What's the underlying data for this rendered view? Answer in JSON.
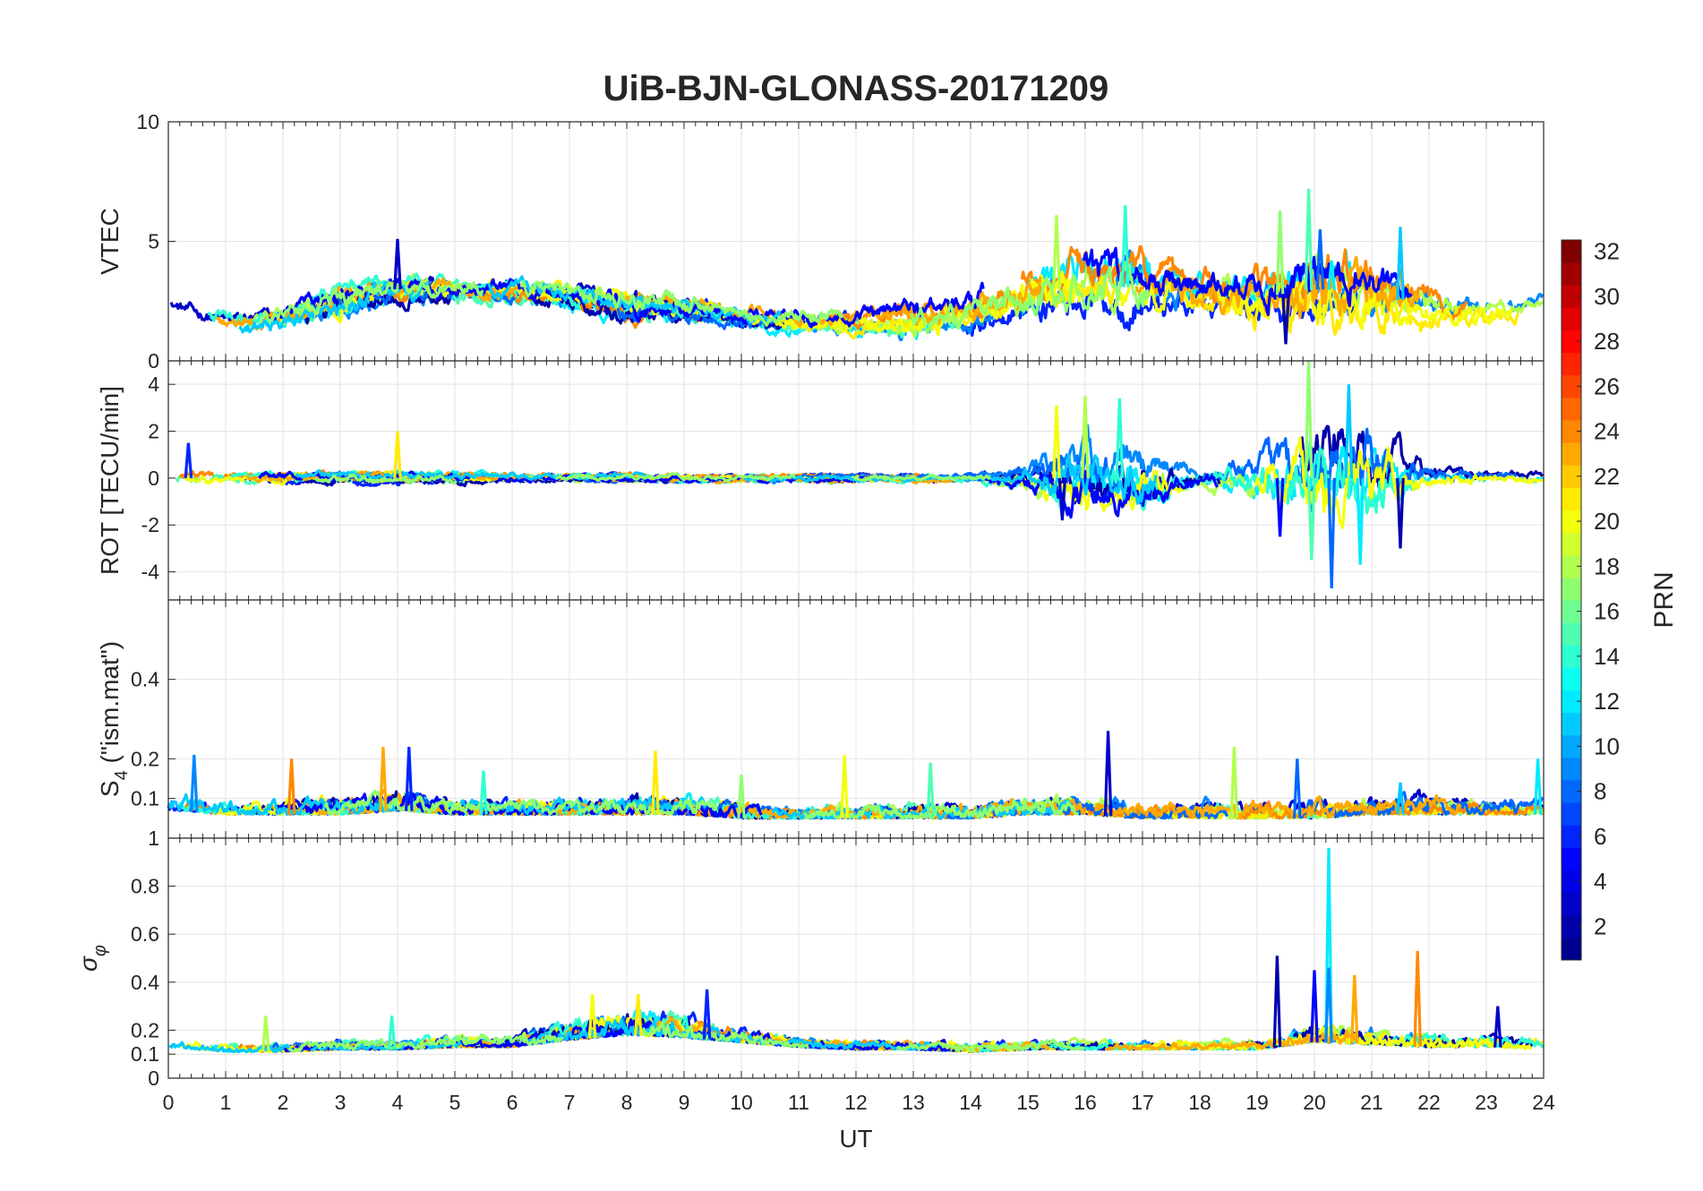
{
  "chart_data": {
    "type": "line",
    "title": "UiB-BJN-GLONASS-20171209",
    "xlabel": "UT",
    "xlim": [
      0,
      24
    ],
    "xticks": [
      "0",
      "1",
      "2",
      "3",
      "4",
      "5",
      "6",
      "7",
      "8",
      "9",
      "10",
      "11",
      "12",
      "13",
      "14",
      "15",
      "16",
      "17",
      "18",
      "19",
      "20",
      "21",
      "22",
      "23",
      "24"
    ],
    "colorbar": {
      "label": "PRN",
      "range": [
        1,
        32
      ],
      "ticks": [
        "2",
        "4",
        "6",
        "8",
        "10",
        "12",
        "14",
        "16",
        "18",
        "20",
        "22",
        "24",
        "26",
        "28",
        "30",
        "32"
      ],
      "colormap": "jet",
      "colors": [
        "#00008f",
        "#0000ff",
        "#0080ff",
        "#00ffff",
        "#80ff80",
        "#ffff00",
        "#ff8000",
        "#ff0000",
        "#800000"
      ]
    },
    "panels": [
      {
        "ylabel": "VTEC",
        "ylim": [
          0,
          10
        ],
        "yticks": [
          "0",
          "5",
          "10"
        ],
        "envelope": {
          "hours": [
            0,
            1,
            2,
            3,
            4,
            5,
            6,
            7,
            8,
            9,
            10,
            11,
            12,
            13,
            14,
            15,
            16,
            17,
            18,
            19,
            20,
            21,
            22,
            23,
            24
          ],
          "base": [
            2.3,
            1.6,
            1.8,
            2.6,
            3.0,
            3.0,
            2.9,
            2.7,
            2.3,
            2.2,
            1.8,
            1.6,
            1.6,
            1.8,
            2.0,
            2.8,
            3.3,
            3.0,
            2.8,
            2.6,
            3.0,
            2.9,
            2.2,
            2.1,
            2.3
          ],
          "spread": [
            0.5,
            0.6,
            0.6,
            0.8,
            0.7,
            0.6,
            0.6,
            0.6,
            0.8,
            0.6,
            0.5,
            0.5,
            0.6,
            0.9,
            0.9,
            1.2,
            1.6,
            1.6,
            1.1,
            1.3,
            2.0,
            1.6,
            0.9,
            0.7,
            0.5
          ],
          "spikes": [
            [
              4.0,
              5.1
            ],
            [
              15.5,
              6.1
            ],
            [
              16.7,
              6.5
            ],
            [
              19.4,
              6.3
            ],
            [
              19.9,
              7.2
            ],
            [
              20.1,
              5.5
            ],
            [
              21.5,
              5.6
            ],
            [
              20.3,
              4.2
            ],
            [
              19.5,
              0.7
            ]
          ]
        }
      },
      {
        "ylabel": "ROT [TECU/min]",
        "ylim": [
          -5.2,
          5
        ],
        "yticks": [
          "-4",
          "-2",
          "0",
          "2",
          "4"
        ],
        "envelope": {
          "hours": [
            0,
            1,
            2,
            3,
            4,
            5,
            6,
            7,
            8,
            9,
            10,
            11,
            12,
            13,
            14,
            15,
            16,
            17,
            18,
            19,
            20,
            21,
            22,
            23,
            24
          ],
          "base": [
            0,
            0,
            0,
            0,
            0,
            0,
            0,
            0,
            0,
            0,
            0,
            0,
            0,
            0,
            0,
            0,
            0,
            0,
            0,
            0,
            0,
            0,
            0,
            0,
            0
          ],
          "spread": [
            0.4,
            0.3,
            0.3,
            0.3,
            0.3,
            0.3,
            0.2,
            0.2,
            0.2,
            0.2,
            0.2,
            0.2,
            0.2,
            0.2,
            0.2,
            0.6,
            1.8,
            1.4,
            0.4,
            1.2,
            3.0,
            2.4,
            0.5,
            0.3,
            0.3
          ],
          "spikes": [
            [
              0.35,
              1.5
            ],
            [
              4.0,
              2.0
            ],
            [
              15.5,
              3.1
            ],
            [
              15.6,
              -1.8
            ],
            [
              16.0,
              3.5
            ],
            [
              16.6,
              3.4
            ],
            [
              19.9,
              5.0
            ],
            [
              19.95,
              -3.5
            ],
            [
              20.3,
              -4.7
            ],
            [
              20.6,
              4.0
            ],
            [
              20.8,
              -3.7
            ],
            [
              21.5,
              -3.0
            ],
            [
              19.4,
              -2.5
            ]
          ]
        }
      },
      {
        "ylabel_html": [
          "S",
          "4",
          " (\"ism.mat\")"
        ],
        "ylim": [
          0,
          0.6
        ],
        "yticks": [
          "0.1",
          "0.2",
          "0.4"
        ],
        "envelope": {
          "hours": [
            0,
            1,
            2,
            3,
            4,
            5,
            6,
            7,
            8,
            9,
            10,
            11,
            12,
            13,
            14,
            15,
            16,
            17,
            18,
            19,
            20,
            21,
            22,
            23,
            24
          ],
          "base": [
            0.07,
            0.06,
            0.06,
            0.06,
            0.07,
            0.06,
            0.06,
            0.06,
            0.06,
            0.06,
            0.05,
            0.05,
            0.05,
            0.05,
            0.05,
            0.06,
            0.06,
            0.05,
            0.05,
            0.05,
            0.05,
            0.06,
            0.06,
            0.06,
            0.06
          ],
          "spread": [
            0.05,
            0.04,
            0.04,
            0.05,
            0.06,
            0.04,
            0.04,
            0.04,
            0.05,
            0.05,
            0.04,
            0.03,
            0.04,
            0.04,
            0.04,
            0.05,
            0.05,
            0.04,
            0.05,
            0.05,
            0.05,
            0.05,
            0.05,
            0.04,
            0.04
          ],
          "spikes": [
            [
              0.45,
              0.21
            ],
            [
              2.15,
              0.2
            ],
            [
              3.75,
              0.23
            ],
            [
              4.2,
              0.23
            ],
            [
              8.5,
              0.22
            ],
            [
              11.8,
              0.21
            ],
            [
              16.4,
              0.27
            ],
            [
              18.6,
              0.23
            ],
            [
              5.5,
              0.17
            ],
            [
              10.0,
              0.16
            ],
            [
              13.3,
              0.19
            ],
            [
              19.7,
              0.2
            ],
            [
              21.5,
              0.14
            ],
            [
              23.9,
              0.2
            ]
          ]
        }
      },
      {
        "ylabel_html": [
          "σ",
          "φ"
        ],
        "ylim": [
          0,
          1
        ],
        "yticks": [
          "0",
          "0.1",
          "0.2",
          "0.4",
          "0.6",
          "0.8",
          "1"
        ],
        "envelope": {
          "hours": [
            0,
            1,
            2,
            3,
            4,
            5,
            6,
            7,
            8,
            9,
            10,
            11,
            12,
            13,
            14,
            15,
            16,
            17,
            18,
            19,
            20,
            21,
            22,
            23,
            24
          ],
          "base": [
            0.13,
            0.11,
            0.11,
            0.12,
            0.12,
            0.13,
            0.13,
            0.16,
            0.18,
            0.17,
            0.15,
            0.13,
            0.12,
            0.12,
            0.11,
            0.12,
            0.12,
            0.12,
            0.12,
            0.12,
            0.15,
            0.14,
            0.13,
            0.13,
            0.12
          ],
          "spread": [
            0.05,
            0.04,
            0.04,
            0.04,
            0.04,
            0.05,
            0.05,
            0.09,
            0.11,
            0.09,
            0.06,
            0.04,
            0.04,
            0.04,
            0.04,
            0.04,
            0.04,
            0.04,
            0.04,
            0.05,
            0.09,
            0.08,
            0.06,
            0.06,
            0.05
          ],
          "spikes": [
            [
              20.25,
              0.96
            ],
            [
              19.35,
              0.51
            ],
            [
              20.0,
              0.45
            ],
            [
              20.25,
              0.46
            ],
            [
              21.8,
              0.53
            ],
            [
              20.7,
              0.43
            ],
            [
              9.4,
              0.37
            ],
            [
              8.2,
              0.35
            ],
            [
              7.4,
              0.35
            ],
            [
              23.2,
              0.3
            ],
            [
              1.7,
              0.26
            ],
            [
              3.9,
              0.26
            ]
          ]
        }
      }
    ]
  }
}
